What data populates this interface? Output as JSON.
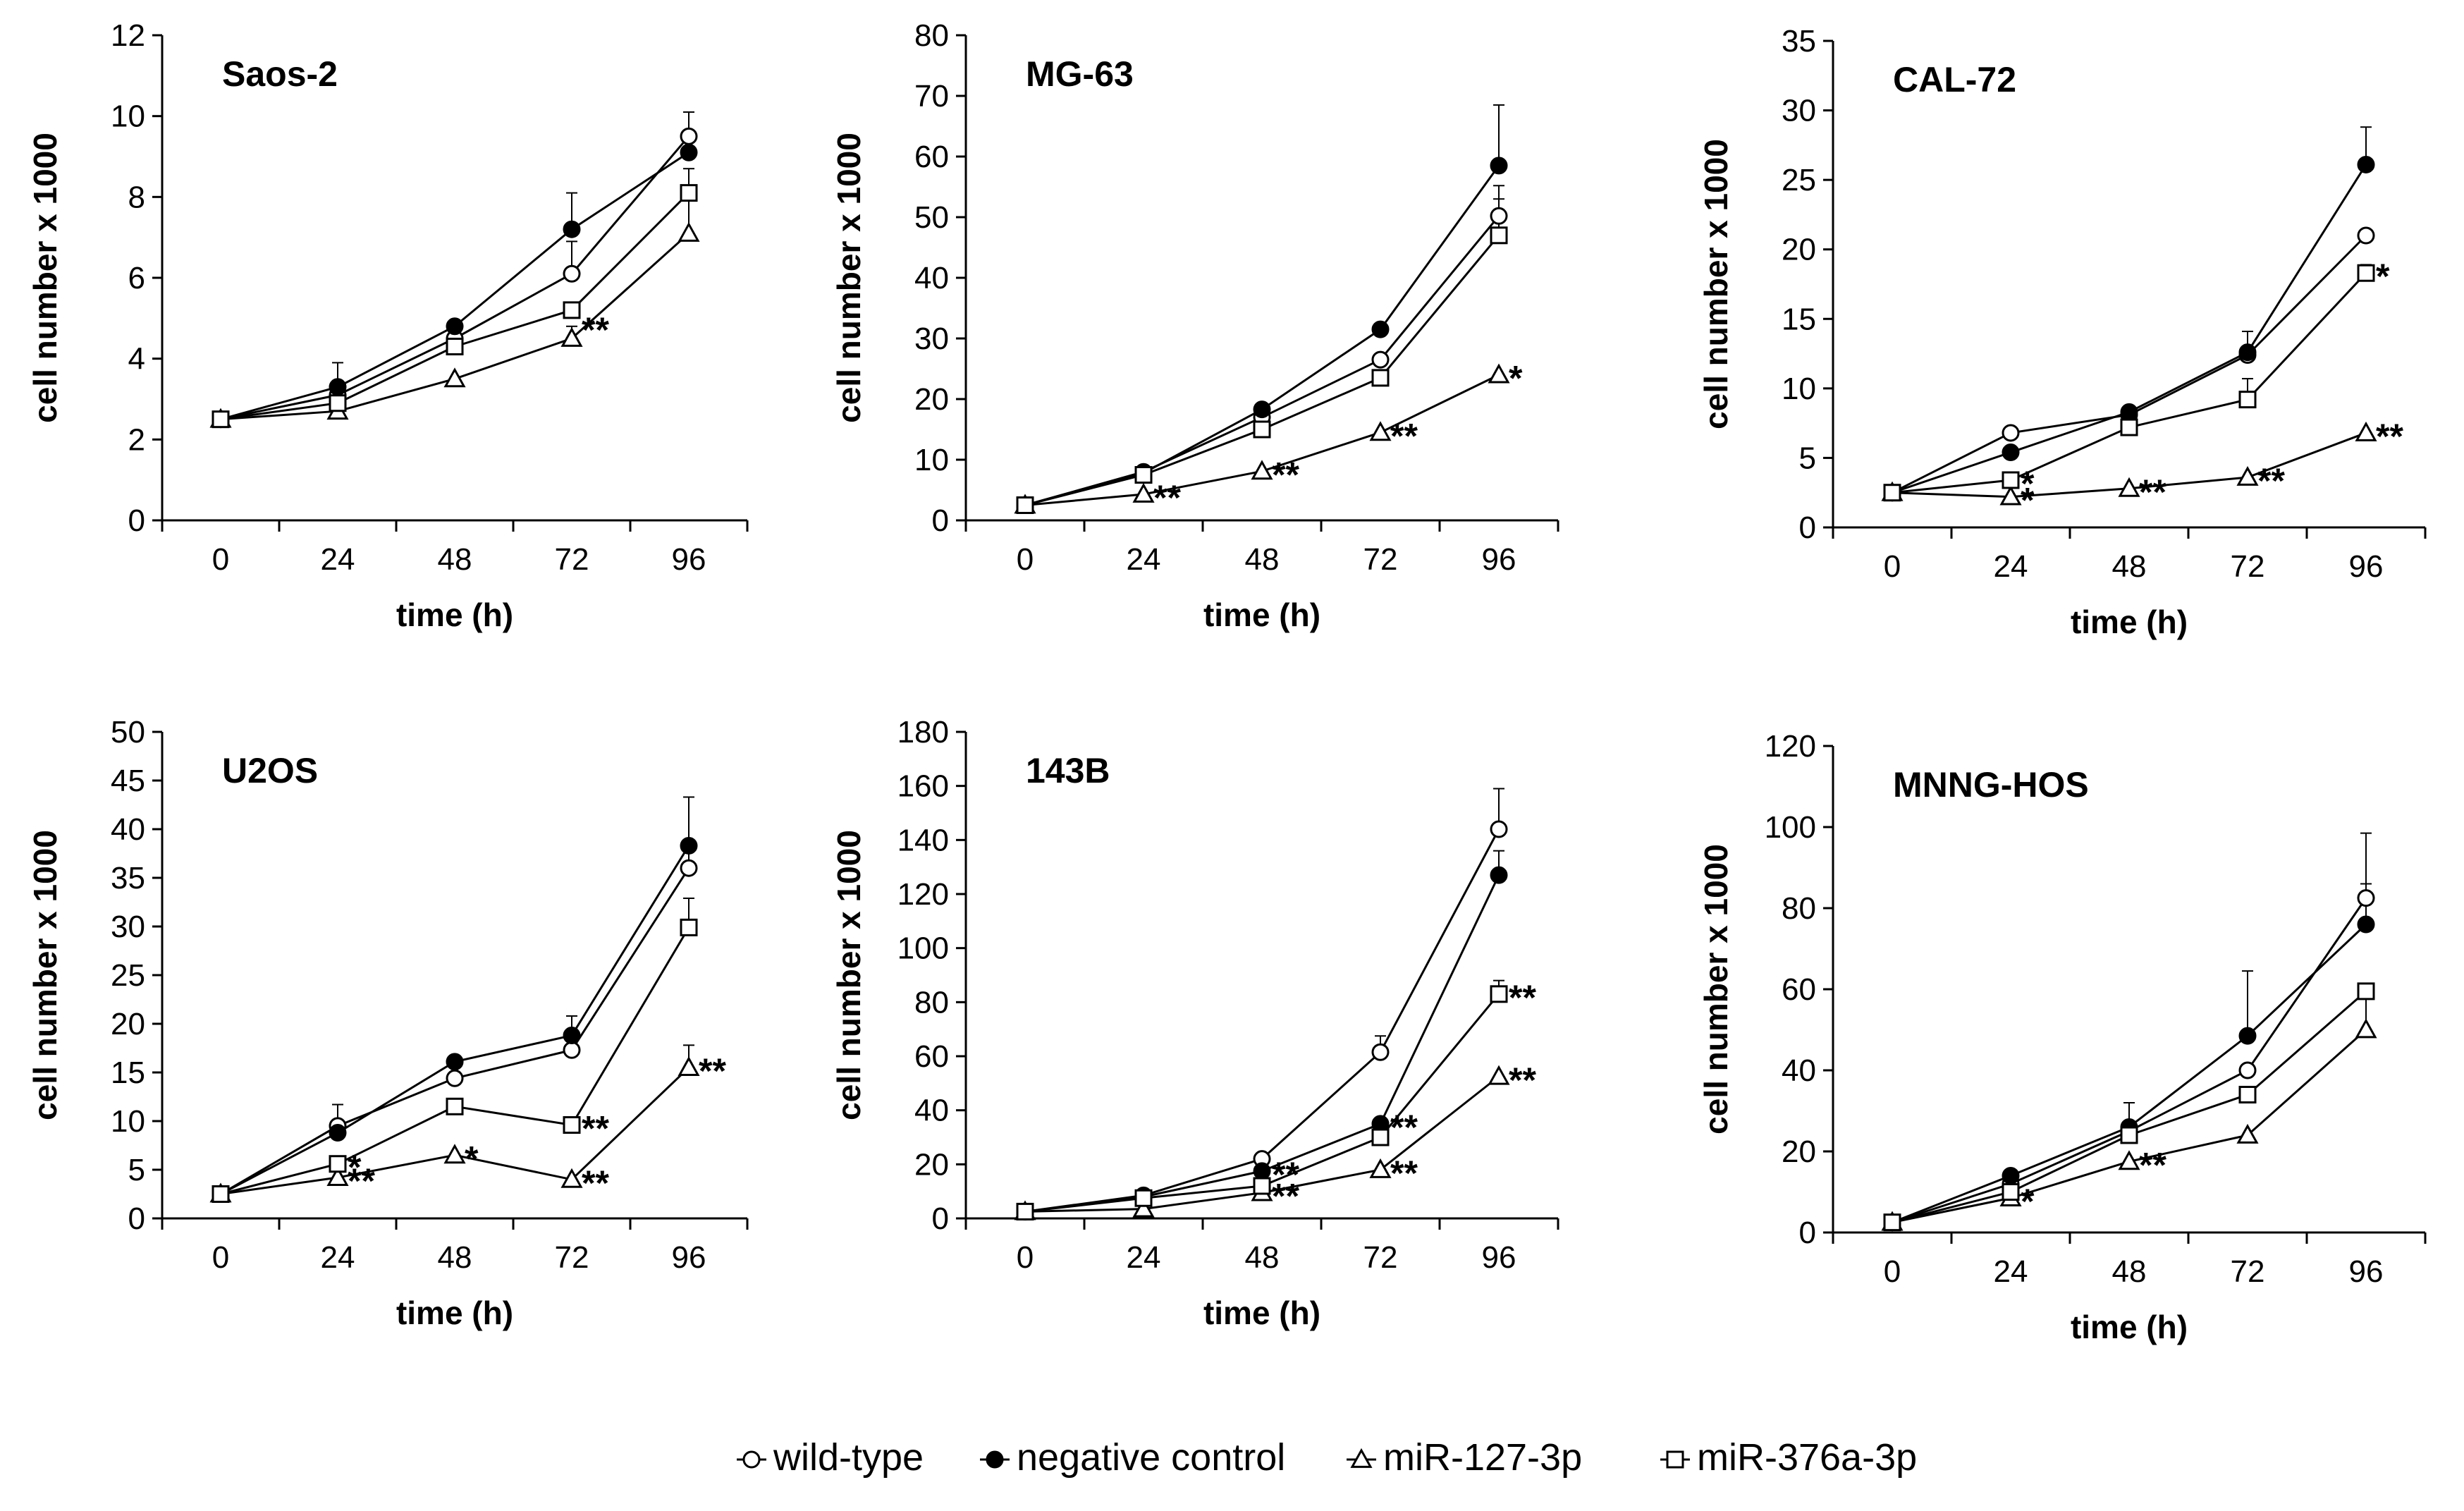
{
  "colors": {
    "ink": "#000000",
    "paper": "#ffffff"
  },
  "legend": [
    {
      "name": "wild-type",
      "marker": "open-circle"
    },
    {
      "name": "negative control",
      "marker": "filled-circle"
    },
    {
      "name": "miR-127-3p",
      "marker": "open-triangle"
    },
    {
      "name": "miR-376a-3p",
      "marker": "open-square"
    }
  ],
  "chart_data": [
    {
      "type": "line",
      "title": "Saos-2",
      "xlabel": "time (h)",
      "ylabel": "cell number x 1000",
      "categories": [
        "0",
        "24",
        "48",
        "72",
        "96"
      ],
      "ylim": [
        0,
        12
      ],
      "yticks": [
        0,
        2,
        4,
        6,
        8,
        10,
        12
      ],
      "series": [
        {
          "name": "wild-type",
          "values": [
            2.5,
            3.1,
            4.5,
            6.1,
            9.5
          ],
          "errors": [
            0,
            0,
            0,
            0.8,
            0.6
          ]
        },
        {
          "name": "negative control",
          "values": [
            2.5,
            3.3,
            4.8,
            7.2,
            9.1
          ],
          "errors": [
            0,
            0.6,
            0,
            0.9,
            0.4
          ]
        },
        {
          "name": "miR-127-3p",
          "values": [
            2.5,
            2.7,
            3.5,
            4.5,
            7.1
          ],
          "errors": [
            0,
            0,
            0,
            0.3,
            1.0
          ]
        },
        {
          "name": "miR-376a-3p",
          "values": [
            2.5,
            2.9,
            4.3,
            5.2,
            8.1
          ],
          "errors": [
            0,
            0,
            0.2,
            0,
            0.6
          ]
        }
      ],
      "annotations": [
        {
          "text": "**",
          "x": "72",
          "y": 4.8
        }
      ]
    },
    {
      "type": "line",
      "title": "MG-63",
      "xlabel": "time (h)",
      "ylabel": "cell number x 1000",
      "categories": [
        "0",
        "24",
        "48",
        "72",
        "96"
      ],
      "ylim": [
        0,
        80
      ],
      "yticks": [
        0,
        10,
        20,
        30,
        40,
        50,
        60,
        70,
        80
      ],
      "series": [
        {
          "name": "wild-type",
          "values": [
            2.5,
            8,
            17,
            26.5,
            50.2
          ],
          "errors": [
            0,
            0,
            0,
            0,
            5
          ]
        },
        {
          "name": "negative control",
          "values": [
            2.5,
            7.8,
            18.3,
            31.5,
            58.5
          ],
          "errors": [
            0,
            0,
            0,
            0,
            10
          ]
        },
        {
          "name": "miR-127-3p",
          "values": [
            2.5,
            4.3,
            8.1,
            14.5,
            24
          ],
          "errors": [
            0,
            0,
            0,
            0,
            0
          ]
        },
        {
          "name": "miR-376a-3p",
          "values": [
            2.5,
            7.5,
            15,
            23.5,
            47
          ],
          "errors": [
            0,
            0,
            0,
            0,
            6
          ]
        }
      ],
      "annotations": [
        {
          "text": "**",
          "x": "24",
          "y": 4.3
        },
        {
          "text": "**",
          "x": "48",
          "y": 8.1
        },
        {
          "text": "**",
          "x": "72",
          "y": 14.5
        },
        {
          "text": "*",
          "x": "96",
          "y": 24
        }
      ]
    },
    {
      "type": "line",
      "title": "CAL-72",
      "xlabel": "time (h)",
      "ylabel": "cell number x 1000",
      "categories": [
        "0",
        "24",
        "48",
        "72",
        "96"
      ],
      "ylim": [
        0,
        35
      ],
      "yticks": [
        0,
        5,
        10,
        15,
        20,
        25,
        30,
        35
      ],
      "series": [
        {
          "name": "wild-type",
          "values": [
            2.5,
            6.8,
            8.1,
            12.4,
            21
          ],
          "errors": [
            0,
            0,
            0,
            0,
            0
          ]
        },
        {
          "name": "negative control",
          "values": [
            2.5,
            5.4,
            8.3,
            12.6,
            26.1
          ],
          "errors": [
            0,
            0,
            0,
            1.5,
            2.7
          ]
        },
        {
          "name": "miR-127-3p",
          "values": [
            2.5,
            2.2,
            2.8,
            3.6,
            6.8
          ],
          "errors": [
            0,
            0,
            0,
            0,
            0
          ]
        },
        {
          "name": "miR-376a-3p",
          "values": [
            2.5,
            3.4,
            7.2,
            9.2,
            18.3
          ],
          "errors": [
            0,
            0,
            0,
            1.5,
            0.6
          ]
        }
      ],
      "annotations": [
        {
          "text": "*",
          "x": "24",
          "y": 3.4
        },
        {
          "text": "*",
          "x": "24",
          "y": 2.2
        },
        {
          "text": "**",
          "x": "48",
          "y": 2.8
        },
        {
          "text": "**",
          "x": "72",
          "y": 3.6
        },
        {
          "text": "**",
          "x": "96",
          "y": 6.8
        },
        {
          "text": "*",
          "x": "96",
          "y": 18.3
        }
      ]
    },
    {
      "type": "line",
      "title": "U2OS",
      "xlabel": "time (h)",
      "ylabel": "cell number x 1000",
      "categories": [
        "0",
        "24",
        "48",
        "72",
        "96"
      ],
      "ylim": [
        0,
        50
      ],
      "yticks": [
        0,
        5,
        10,
        15,
        20,
        25,
        30,
        35,
        40,
        45,
        50
      ],
      "series": [
        {
          "name": "wild-type",
          "values": [
            2.5,
            9.5,
            14.4,
            17.3,
            36
          ],
          "errors": [
            0,
            2.2,
            0,
            0,
            2.5
          ]
        },
        {
          "name": "negative control",
          "values": [
            2.5,
            8.8,
            16.1,
            18.8,
            38.3
          ],
          "errors": [
            0,
            0,
            0,
            2,
            5
          ]
        },
        {
          "name": "miR-127-3p",
          "values": [
            2.5,
            4.2,
            6.5,
            4,
            15.5
          ],
          "errors": [
            0,
            2,
            0,
            0,
            2.3
          ]
        },
        {
          "name": "miR-376a-3p",
          "values": [
            2.5,
            5.6,
            11.5,
            9.6,
            29.9
          ],
          "errors": [
            0,
            0,
            0,
            0,
            3
          ]
        }
      ],
      "annotations": [
        {
          "text": "*",
          "x": "24",
          "y": 5.6
        },
        {
          "text": "**",
          "x": "24",
          "y": 4.2
        },
        {
          "text": "*",
          "x": "48",
          "y": 6.5
        },
        {
          "text": "**",
          "x": "72",
          "y": 9.6
        },
        {
          "text": "**",
          "x": "72",
          "y": 4
        },
        {
          "text": "**",
          "x": "96",
          "y": 15.5
        }
      ]
    },
    {
      "type": "line",
      "title": "143B",
      "xlabel": "time (h)",
      "ylabel": "cell number x 1000",
      "categories": [
        "0",
        "24",
        "48",
        "72",
        "96"
      ],
      "ylim": [
        0,
        180
      ],
      "yticks": [
        0,
        20,
        40,
        60,
        80,
        100,
        120,
        140,
        160,
        180
      ],
      "series": [
        {
          "name": "wild-type",
          "values": [
            2.5,
            8.5,
            22,
            61.5,
            144
          ],
          "errors": [
            0,
            0,
            0,
            6,
            15
          ]
        },
        {
          "name": "negative control",
          "values": [
            2.5,
            8,
            17.5,
            35,
            127
          ],
          "errors": [
            0,
            0,
            0,
            0,
            9
          ]
        },
        {
          "name": "miR-127-3p",
          "values": [
            2.5,
            3.5,
            9.5,
            18,
            52.5
          ],
          "errors": [
            0,
            0,
            0,
            0,
            0
          ]
        },
        {
          "name": "miR-376a-3p",
          "values": [
            2.5,
            7.5,
            12,
            30,
            83
          ],
          "errors": [
            0,
            0,
            0,
            0,
            5
          ]
        }
      ],
      "annotations": [
        {
          "text": "**",
          "x": "48",
          "y": 17.5
        },
        {
          "text": "**",
          "x": "48",
          "y": 9.5
        },
        {
          "text": "**",
          "x": "72",
          "y": 35
        },
        {
          "text": "**",
          "x": "72",
          "y": 18
        },
        {
          "text": "**",
          "x": "96",
          "y": 83
        },
        {
          "text": "**",
          "x": "96",
          "y": 52.5
        }
      ]
    },
    {
      "type": "line",
      "title": "MNNG-HOS",
      "xlabel": "time (h)",
      "ylabel": "cell number x 1000",
      "categories": [
        "0",
        "24",
        "48",
        "72",
        "96"
      ],
      "ylim": [
        0,
        120
      ],
      "yticks": [
        0,
        20,
        40,
        60,
        80,
        100,
        120
      ],
      "series": [
        {
          "name": "wild-type",
          "values": [
            2.5,
            12,
            25,
            40,
            82.5
          ],
          "errors": [
            0,
            0,
            7,
            0,
            16
          ]
        },
        {
          "name": "negative control",
          "values": [
            2.5,
            14,
            26,
            48.5,
            76
          ],
          "errors": [
            0,
            0,
            0,
            16,
            10
          ]
        },
        {
          "name": "miR-127-3p",
          "values": [
            2.5,
            8.5,
            17.5,
            24,
            50
          ],
          "errors": [
            0,
            0,
            0,
            0,
            11
          ]
        },
        {
          "name": "miR-376a-3p",
          "values": [
            2.5,
            10,
            24,
            34,
            59.5
          ],
          "errors": [
            0,
            0,
            0,
            0,
            0
          ]
        }
      ],
      "annotations": [
        {
          "text": "*",
          "x": "24",
          "y": 8.5
        },
        {
          "text": "**",
          "x": "48",
          "y": 17.5
        }
      ]
    }
  ]
}
